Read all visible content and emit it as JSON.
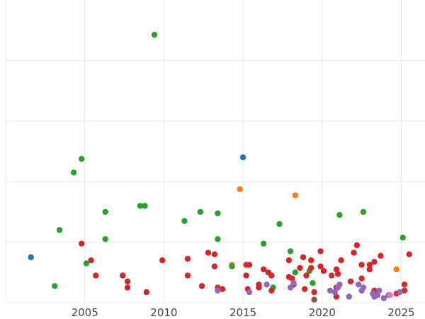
{
  "chart_data": {
    "type": "scatter",
    "title": "",
    "xlabel": "",
    "ylabel": "",
    "xlim": [
      2000.0,
      2026.5
    ],
    "ylim": [
      0,
      20
    ],
    "x_ticks": [
      2005,
      2010,
      2015,
      2020,
      2025
    ],
    "x_tick_labels": [
      "2005",
      "2010",
      "2015",
      "2020",
      "2025"
    ],
    "y_gridlines": [
      0,
      4,
      8,
      12,
      16
    ],
    "grid": true,
    "legend": "none",
    "series": [
      {
        "color": "#1f77b4",
        "points": [
          [
            2001.6,
            3.0
          ],
          [
            2015.0,
            9.6
          ]
        ]
      },
      {
        "color": "#ff7f0e",
        "points": [
          [
            2014.3,
            2.5
          ],
          [
            2014.8,
            7.5
          ],
          [
            2018.3,
            7.1
          ],
          [
            2024.7,
            2.2
          ]
        ]
      },
      {
        "color": "#2ca02c",
        "points": [
          [
            2003.1,
            1.1
          ],
          [
            2003.4,
            4.8
          ],
          [
            2004.3,
            8.6
          ],
          [
            2004.8,
            9.5
          ],
          [
            2005.1,
            2.6
          ],
          [
            2006.3,
            6.0
          ],
          [
            2006.3,
            4.2
          ],
          [
            2008.5,
            6.4
          ],
          [
            2008.8,
            6.4
          ],
          [
            2009.4,
            17.7
          ],
          [
            2011.3,
            5.4
          ],
          [
            2012.3,
            6.0
          ],
          [
            2013.4,
            5.9
          ],
          [
            2013.4,
            4.2
          ],
          [
            2014.3,
            2.4
          ],
          [
            2016.3,
            3.9
          ],
          [
            2016.9,
            1.0
          ],
          [
            2017.3,
            5.2
          ],
          [
            2018.0,
            3.4
          ],
          [
            2018.3,
            2.0
          ],
          [
            2019.2,
            2.1
          ],
          [
            2019.4,
            1.3
          ],
          [
            2021.1,
            5.8
          ],
          [
            2022.6,
            6.0
          ],
          [
            2025.1,
            4.3
          ]
        ]
      },
      {
        "color": "#d62728",
        "points": [
          [
            2004.8,
            3.9
          ],
          [
            2005.4,
            2.8
          ],
          [
            2005.7,
            1.8
          ],
          [
            2007.4,
            1.8
          ],
          [
            2007.7,
            1.4
          ],
          [
            2007.7,
            1.0
          ],
          [
            2008.9,
            0.7
          ],
          [
            2009.9,
            2.8
          ],
          [
            2011.5,
            1.8
          ],
          [
            2011.5,
            2.9
          ],
          [
            2012.4,
            1.1
          ],
          [
            2012.8,
            3.3
          ],
          [
            2013.2,
            3.2
          ],
          [
            2013.2,
            2.4
          ],
          [
            2013.4,
            1.0
          ],
          [
            2013.7,
            0.9
          ],
          [
            2015.2,
            2.5
          ],
          [
            2015.4,
            2.5
          ],
          [
            2015.2,
            1.8
          ],
          [
            2015.3,
            0.9
          ],
          [
            2016.0,
            1.2
          ],
          [
            2016.0,
            1.0
          ],
          [
            2016.3,
            2.2
          ],
          [
            2016.6,
            2.0
          ],
          [
            2016.8,
            1.8
          ],
          [
            2016.8,
            0.8
          ],
          [
            2017.9,
            2.8
          ],
          [
            2017.9,
            1.7
          ],
          [
            2018.1,
            1.6
          ],
          [
            2018.2,
            1.2
          ],
          [
            2018.6,
            2.3
          ],
          [
            2018.8,
            3.0
          ],
          [
            2018.9,
            0.9
          ],
          [
            2019.0,
            1.8
          ],
          [
            2019.3,
            2.3
          ],
          [
            2019.3,
            2.8
          ],
          [
            2019.5,
            0.7
          ],
          [
            2019.9,
            3.4
          ],
          [
            2019.9,
            2.4
          ],
          [
            2020.1,
            2.1
          ],
          [
            2020.6,
            1.8
          ],
          [
            2020.9,
            2.2
          ],
          [
            2021.0,
            1.9
          ],
          [
            2020.9,
            1.0
          ],
          [
            2020.9,
            0.4
          ],
          [
            2021.2,
            2.8
          ],
          [
            2021.8,
            1.4
          ],
          [
            2022.0,
            3.3
          ],
          [
            2022.2,
            3.8
          ],
          [
            2022.5,
            2.5
          ],
          [
            2022.5,
            1.6
          ],
          [
            2023.0,
            2.2
          ],
          [
            2023.0,
            2.5
          ],
          [
            2023.3,
            2.7
          ],
          [
            2023.3,
            0.8
          ],
          [
            2023.7,
            3.1
          ],
          [
            2024.7,
            0.6
          ],
          [
            2025.2,
            1.2
          ],
          [
            2025.2,
            0.8
          ],
          [
            2025.5,
            3.2
          ]
        ]
      },
      {
        "color": "#9467bd",
        "points": [
          [
            2013.4,
            0.8
          ],
          [
            2015.4,
            0.7
          ],
          [
            2016.5,
            1.2
          ],
          [
            2018.0,
            1.0
          ],
          [
            2018.2,
            1.3
          ],
          [
            2020.5,
            0.8
          ],
          [
            2020.8,
            0.7
          ],
          [
            2021.0,
            1.0
          ],
          [
            2021.1,
            1.2
          ],
          [
            2021.7,
            0.4
          ],
          [
            2022.3,
            1.2
          ],
          [
            2022.5,
            0.8
          ],
          [
            2022.6,
            1.0
          ],
          [
            2023.2,
            0.6
          ],
          [
            2023.3,
            0.4
          ],
          [
            2023.5,
            0.5
          ],
          [
            2023.6,
            0.8
          ],
          [
            2023.9,
            0.3
          ],
          [
            2024.2,
            0.5
          ],
          [
            2024.9,
            0.7
          ]
        ]
      },
      {
        "color": "#8c564b",
        "points": [
          [
            2019.5,
            0.2
          ]
        ]
      },
      {
        "color": "#e377c2",
        "points": [
          [
            2024.3,
            0.5
          ]
        ]
      }
    ]
  }
}
